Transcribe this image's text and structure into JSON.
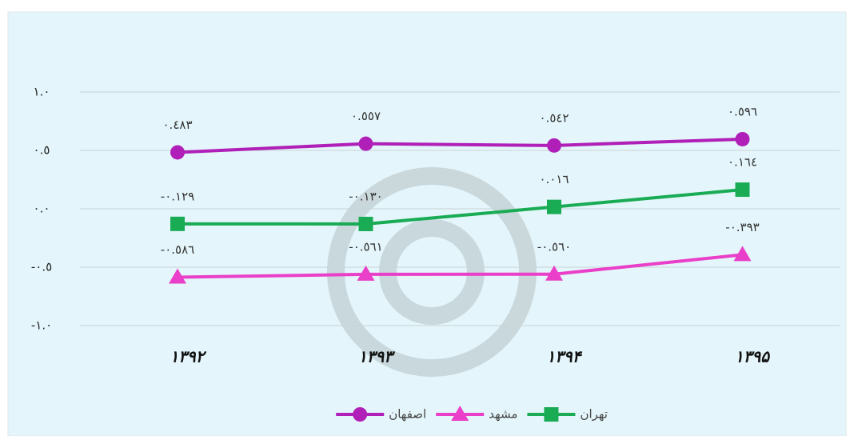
{
  "chart_data": {
    "type": "line",
    "categories": [
      "۱۳۹۲",
      "۱۳۹۳",
      "۱۳۹۴",
      "۱۳۹۵"
    ],
    "series": [
      {
        "name": "اصفهان",
        "color": "#b01fb8",
        "marker": "circle",
        "values": [
          0.483,
          0.557,
          0.542,
          0.596
        ],
        "value_labels": [
          "٠.٤٨٣",
          "٠.٥٥٧",
          "٠.٥٤٢",
          "٠.٥٩٦"
        ]
      },
      {
        "name": "مشهد",
        "color": "#ea3fc8",
        "marker": "triangle",
        "values": [
          -0.586,
          -0.561,
          -0.56,
          -0.393
        ],
        "value_labels": [
          "-٠.٥٨٦",
          "-٠.٥٦١",
          "-٠.٥٦٠",
          "-٠.٣٩٣"
        ]
      },
      {
        "name": "تهران",
        "color": "#1aab55",
        "marker": "square",
        "values": [
          -0.129,
          -0.13,
          0.016,
          0.164
        ],
        "value_labels": [
          "-٠.١٢٩",
          "-٠.١٣٠",
          "٠.٠١٦",
          "٠.١٦٤"
        ]
      }
    ],
    "ylim": [
      -1,
      1
    ],
    "yticks": [
      {
        "value": 1,
        "label": "١.٠"
      },
      {
        "value": 0.5,
        "label": "٠.٥"
      },
      {
        "value": 0,
        "label": "٠.٠"
      },
      {
        "value": -0.5,
        "label": "-٠.٥"
      },
      {
        "value": -1,
        "label": "-١.٠"
      }
    ],
    "grid": true
  }
}
